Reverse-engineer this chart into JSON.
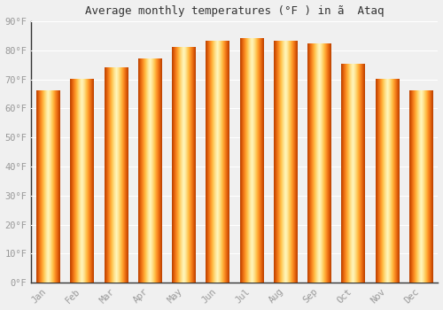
{
  "title": "Average monthly temperatures (°F ) in ã  Ataq",
  "months": [
    "Jan",
    "Feb",
    "Mar",
    "Apr",
    "May",
    "Jun",
    "Jul",
    "Aug",
    "Sep",
    "Oct",
    "Nov",
    "Dec"
  ],
  "values": [
    66,
    70,
    74,
    77,
    81,
    83,
    84,
    83,
    82,
    75,
    70,
    66
  ],
  "bar_color_center": "#FFD04A",
  "bar_color_edge": "#F5A800",
  "background_color": "#f0f0f0",
  "grid_color": "#ffffff",
  "ylim": [
    0,
    90
  ],
  "yticks": [
    0,
    10,
    20,
    30,
    40,
    50,
    60,
    70,
    80,
    90
  ],
  "ytick_labels": [
    "0°F",
    "10°F",
    "20°F",
    "30°F",
    "40°F",
    "50°F",
    "60°F",
    "70°F",
    "80°F",
    "90°F"
  ],
  "title_fontsize": 9,
  "tick_fontsize": 7.5,
  "tick_color": "#999999"
}
